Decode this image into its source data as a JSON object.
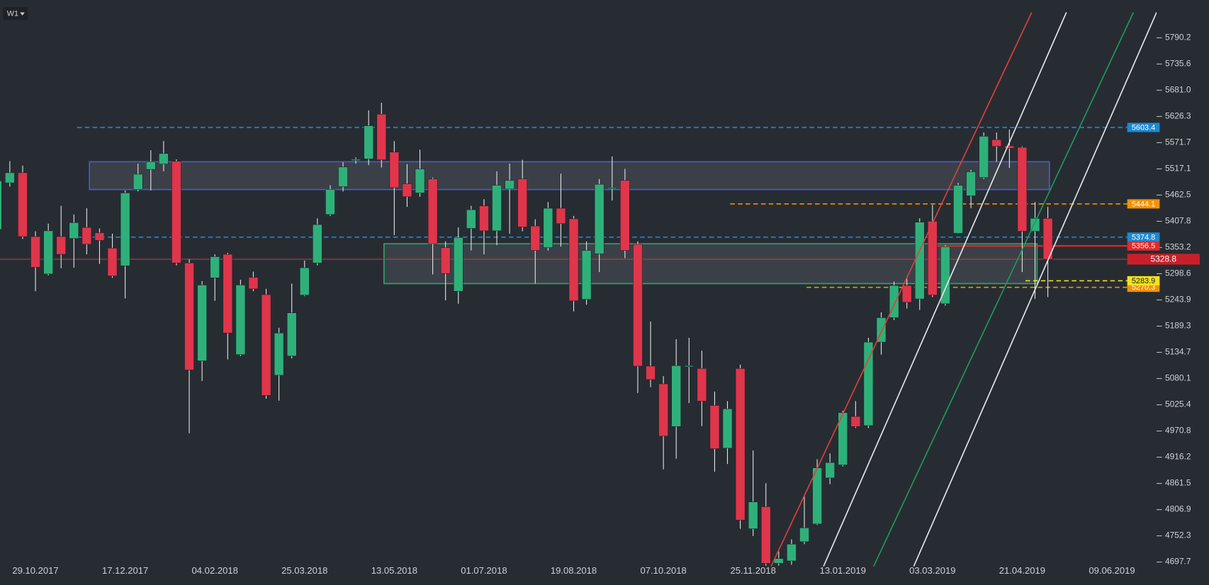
{
  "chart_data": {
    "type": "candlestick",
    "timeframe": "W1",
    "categories": [
      null,
      null,
      null,
      "29.10.2017",
      null,
      null,
      null,
      null,
      null,
      null,
      "17.12.2017",
      null,
      null,
      null,
      null,
      null,
      null,
      "04.02.2018",
      null,
      null,
      null,
      null,
      null,
      null,
      "25.03.2018",
      null,
      null,
      null,
      null,
      null,
      null,
      "13.05.2018",
      null,
      null,
      null,
      null,
      null,
      null,
      "01.07.2018",
      null,
      null,
      null,
      null,
      null,
      null,
      "19.08.2018",
      null,
      null,
      null,
      null,
      null,
      null,
      "07.10.2018",
      null,
      null,
      null,
      null,
      null,
      null,
      "25.11.2018",
      null,
      null,
      null,
      null,
      null,
      null,
      "13.01.2019",
      null,
      null,
      null,
      null,
      null,
      null,
      "03.03.2019",
      null,
      null,
      null,
      null,
      null,
      null,
      "21.04.2019",
      null,
      null,
      null,
      null,
      null,
      null,
      "09.06.2019",
      null,
      null
    ],
    "open": [
      5391,
      5488,
      5509,
      5376,
      5298,
      5376,
      5372,
      5395,
      5384,
      5352,
      5315,
      5474,
      5516,
      5527,
      5533,
      5321,
      5117,
      5290,
      5339,
      5130,
      5291,
      5255,
      5087,
      5127,
      5254,
      5321,
      5422,
      5480,
      5535,
      5538,
      5631,
      5552,
      5486,
      5467,
      5496,
      5353,
      5262,
      5393,
      5440,
      5388,
      5475,
      5496,
      5398,
      5353,
      5435,
      5413,
      5245,
      5340,
      5476,
      5493,
      5360,
      5106,
      5069,
      4980,
      5105,
      5101,
      5024,
      4935,
      5101,
      4767,
      4813,
      4695,
      4700,
      4740,
      4777,
      4873,
      4900,
      5001,
      4982,
      5156,
      5207,
      5274,
      5246,
      5408,
      5236,
      5383,
      5461,
      5499,
      5578,
      5565,
      5562,
      5387,
      5414,
      null,
      null,
      null,
      null,
      null,
      null,
      null
    ],
    "high": [
      5500,
      5533,
      5524,
      5387,
      5403,
      5440,
      5422,
      5435,
      5393,
      5382,
      5472,
      5528,
      5556,
      5575,
      5537,
      5329,
      5283,
      5339,
      5342,
      5286,
      5303,
      5267,
      5186,
      5278,
      5326,
      5414,
      5483,
      5531,
      5541,
      5639,
      5655,
      5575,
      5527,
      5557,
      5499,
      5366,
      5395,
      5440,
      5454,
      5512,
      5528,
      5536,
      5412,
      5448,
      5507,
      5419,
      5366,
      5496,
      5543,
      5517,
      5366,
      5199,
      5085,
      5162,
      5165,
      5138,
      5053,
      5033,
      5109,
      4930,
      4862,
      4720,
      4745,
      4836,
      4912,
      4924,
      5013,
      5033,
      5165,
      5218,
      5282,
      5290,
      5414,
      5442,
      5358,
      5488,
      5515,
      5593,
      5593,
      5599,
      5564,
      5448,
      5438,
      null,
      null,
      null,
      null,
      null,
      null,
      null
    ],
    "low": [
      5385,
      5480,
      5371,
      5262,
      5295,
      5310,
      5311,
      5339,
      5319,
      5290,
      5247,
      5470,
      5472,
      5512,
      5316,
      4966,
      5075,
      5242,
      5120,
      5127,
      5262,
      5038,
      5034,
      5122,
      5252,
      5316,
      5419,
      5470,
      5528,
      5525,
      5520,
      5379,
      5438,
      5459,
      5297,
      5243,
      5236,
      5347,
      5339,
      5358,
      5382,
      5387,
      5278,
      5347,
      5355,
      5220,
      5234,
      5302,
      5451,
      5331,
      5050,
      5062,
      4891,
      4913,
      5029,
      4981,
      4886,
      4902,
      4767,
      4752,
      4690,
      4690,
      4692,
      4735,
      4775,
      4860,
      4897,
      4977,
      4977,
      5130,
      5202,
      5226,
      5223,
      5250,
      5232,
      5382,
      5435,
      5496,
      5532,
      5519,
      5302,
      5246,
      5250,
      null,
      null,
      null,
      null,
      null,
      null,
      null
    ],
    "close": [
      5492,
      5509,
      5376,
      5312,
      5388,
      5339,
      5405,
      5360,
      5368,
      5294,
      5467,
      5506,
      5532,
      5549,
      5321,
      5098,
      5275,
      5334,
      5175,
      5275,
      5267,
      5045,
      5175,
      5217,
      5311,
      5401,
      5474,
      5521,
      5537,
      5607,
      5536,
      5478,
      5459,
      5517,
      5361,
      5299,
      5374,
      5432,
      5388,
      5483,
      5493,
      5396,
      5347,
      5435,
      5403,
      5242,
      5347,
      5485,
      5478,
      5347,
      5106,
      5078,
      4960,
      5107,
      5107,
      5033,
      4934,
      5017,
      4785,
      4823,
      4695,
      4705,
      4735,
      4769,
      4894,
      4905,
      5009,
      4980,
      5156,
      5207,
      5274,
      5239,
      5406,
      5254,
      5355,
      5483,
      5511,
      5585,
      5564,
      5560,
      5387,
      5414,
      5328.8,
      null,
      null,
      null,
      null,
      null,
      null,
      null
    ],
    "up_color": "#2fb07a",
    "down_color": "#e0354b",
    "ylim": [
      4688.5,
      5868.9
    ],
    "yticks": [
      5790.2,
      5735.6,
      {
        "value": 5681,
        "label": "5681.0"
      },
      5626.3,
      5571.7,
      5517.1,
      5462.5,
      5407.8,
      5353.2,
      5298.6,
      5243.9,
      5189.3,
      5134.7,
      5080.1,
      5025.4,
      4970.8,
      4916.2,
      4861.5,
      4806.9,
      4752.3,
      4697.7
    ],
    "zones": [
      {
        "ylim": [
          5474,
          5532
        ],
        "color": "#4a5bd4"
      },
      {
        "ylim": [
          5278,
          5361
        ],
        "color": "#2fa36b"
      }
    ],
    "price_lines": [
      {
        "value": 5603.4,
        "color": "#1a8ad4",
        "dashed": true
      },
      {
        "value": 5374.8,
        "color": "#1a8ad4",
        "dashed": true
      },
      {
        "value": 5444.1,
        "color": "#f39200",
        "dashed": true
      },
      {
        "value": 5270.3,
        "color": "#f39200",
        "dashed": true
      },
      {
        "value": 5283.9,
        "color": "#f2e21b",
        "dashed": true
      },
      {
        "value": 5356.5,
        "color": "#e02a2a",
        "dashed": false
      }
    ],
    "last_price_color": "#c8202a"
  }
}
